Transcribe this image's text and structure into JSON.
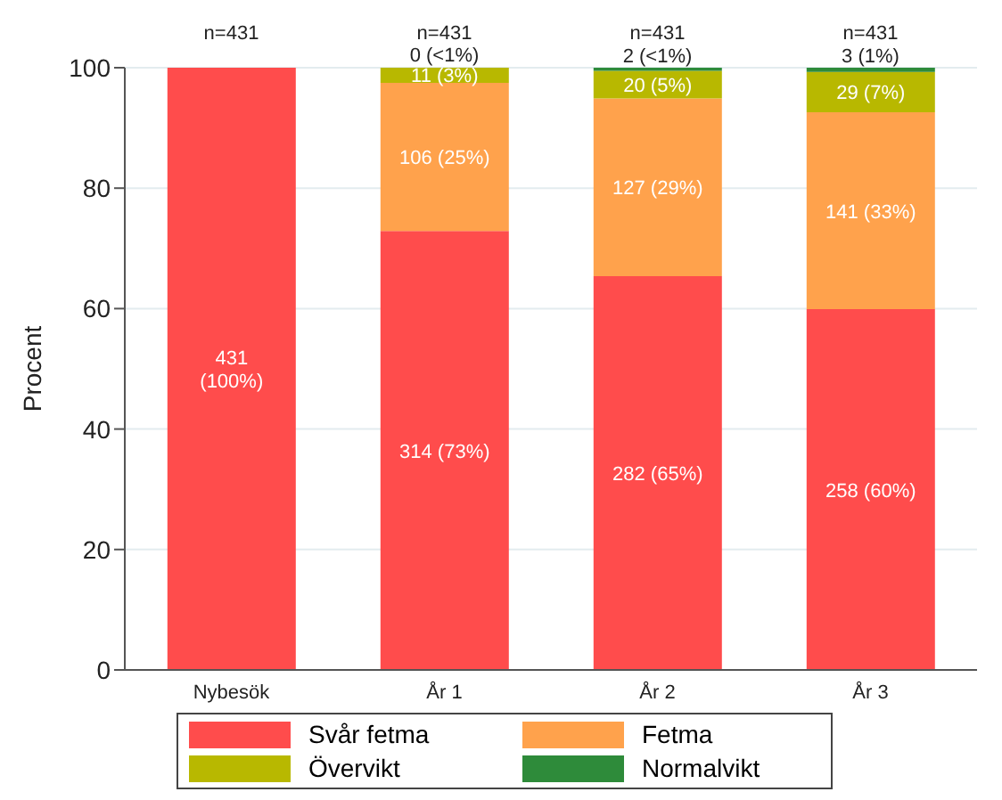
{
  "chart_data": {
    "type": "bar",
    "stacked": true,
    "ylabel": "Procent",
    "categories": [
      "Nybesök",
      "År 1",
      "År 2",
      "År 3"
    ],
    "series": [
      {
        "name": "Svår fetma",
        "color": "#ff4c4c",
        "values": [
          100,
          72.9,
          65.4,
          59.9
        ],
        "value_labels": [
          "431\n(100%)",
          "314 (73%)",
          "282 (65%)",
          "258 (60%)"
        ]
      },
      {
        "name": "Fetma",
        "color": "#ffa24c",
        "values": [
          0,
          24.6,
          29.5,
          32.7
        ],
        "value_labels": [
          null,
          "106 (25%)",
          "127 (29%)",
          "141 (33%)"
        ]
      },
      {
        "name": "Övervikt",
        "color": "#b8b800",
        "values": [
          0,
          2.6,
          4.6,
          6.7
        ],
        "value_labels": [
          null,
          "11 (3%)",
          "20 (5%)",
          "29 (7%)"
        ]
      },
      {
        "name": "Normalvikt",
        "color": "#2e8b3a",
        "values": [
          0,
          0,
          0.5,
          0.7
        ],
        "value_labels": [
          null,
          "0 (<1%)",
          "2 (<1%)",
          "3 (1%)"
        ]
      }
    ],
    "annotations": [
      {
        "text": "n=431",
        "x": "Nybesök",
        "y": 100
      },
      {
        "text": "n=431",
        "x": "År 1",
        "y": 100
      },
      {
        "text": "n=431",
        "x": "År 2",
        "y": 100
      },
      {
        "text": "n=431",
        "x": "År 3",
        "y": 100
      }
    ],
    "ylim": [
      0,
      100
    ],
    "yticks": [
      0,
      20,
      40,
      60,
      80,
      100
    ],
    "grid": "y",
    "legend": "bottom"
  }
}
